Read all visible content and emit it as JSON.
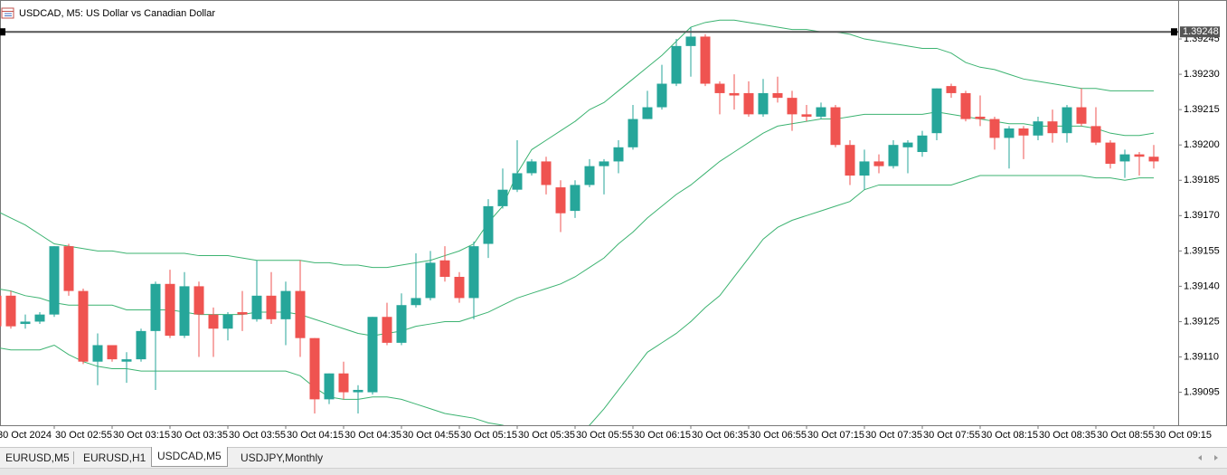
{
  "chart_data": {
    "type": "candlestick",
    "title": "USDCAD, M5:  US Dollar vs Canadian Dollar",
    "categories": [
      "30 Oct 2024",
      null,
      null,
      null,
      "30 Oct 02:55",
      null,
      null,
      null,
      "30 Oct 03:15",
      null,
      null,
      null,
      "30 Oct 03:35",
      null,
      null,
      null,
      "30 Oct 03:55",
      null,
      null,
      null,
      "30 Oct 04:15",
      null,
      null,
      null,
      "30 Oct 04:35",
      null,
      null,
      null,
      "30 Oct 04:55",
      null,
      null,
      null,
      "30 Oct 05:15",
      null,
      null,
      null,
      "30 Oct 05:35",
      null,
      null,
      null,
      "30 Oct 05:55",
      null,
      null,
      null,
      "30 Oct 06:15",
      null,
      null,
      null,
      "30 Oct 06:35",
      null,
      null,
      null,
      "30 Oct 06:55",
      null,
      null,
      null,
      "30 Oct 07:15",
      null,
      null,
      null,
      "30 Oct 07:35",
      null,
      null,
      null,
      "30 Oct 07:55",
      null,
      null,
      null,
      "30 Oct 08:15",
      null,
      null,
      null,
      "30 Oct 08:35",
      null,
      null,
      null,
      "30 Oct 08:55",
      null,
      null,
      null,
      "30 Oct 09:15"
    ],
    "open": [
      1.39136,
      1.39136,
      1.39124,
      1.39125,
      1.39128,
      1.39157,
      1.39138,
      1.39108,
      1.39115,
      1.39108,
      1.39109,
      1.39121,
      1.39141,
      1.39119,
      1.3914,
      1.39128,
      1.39122,
      1.39129,
      1.39126,
      1.39136,
      1.39126,
      1.39138,
      1.39118,
      1.39092,
      1.39103,
      1.39095,
      1.39095,
      1.39127,
      1.39116,
      1.39132,
      1.39135,
      1.39151,
      1.39144,
      1.39135,
      1.39158,
      1.39174,
      1.39181,
      1.39188,
      1.39193,
      1.39182,
      1.39172,
      1.39183,
      1.39191,
      1.39193,
      1.39199,
      1.39211,
      1.39216,
      1.39226,
      1.39242,
      1.39246,
      1.39226,
      1.39222,
      1.39222,
      1.39213,
      1.39222,
      1.3922,
      1.39213,
      1.39212,
      1.39216,
      1.392,
      1.39187,
      1.39193,
      1.39191,
      1.39199,
      1.39197,
      1.39205,
      1.39225,
      1.39222,
      1.39212,
      1.39211,
      1.39203,
      1.39207,
      1.39204,
      1.3921,
      1.39205,
      1.39216,
      1.39208,
      1.39201,
      1.39193,
      1.39196,
      1.39195
    ],
    "high": [
      1.39138,
      1.39138,
      1.39128,
      1.39129,
      1.39157,
      1.39158,
      1.39139,
      1.3912,
      1.39115,
      1.39112,
      1.39122,
      1.39142,
      1.39147,
      1.39146,
      1.39142,
      1.39131,
      1.39129,
      1.39138,
      1.39151,
      1.39146,
      1.39142,
      1.39151,
      1.39118,
      1.39103,
      1.39108,
      1.39098,
      1.39127,
      1.39133,
      1.39137,
      1.39154,
      1.39155,
      1.39157,
      1.39146,
      1.39159,
      1.39177,
      1.3919,
      1.39202,
      1.39194,
      1.39195,
      1.39185,
      1.39185,
      1.39194,
      1.39194,
      1.39202,
      1.39217,
      1.39223,
      1.39234,
      1.39245,
      1.3925,
      1.39247,
      1.39227,
      1.3923,
      1.39227,
      1.39228,
      1.39229,
      1.39223,
      1.39217,
      1.39218,
      1.39217,
      1.39202,
      1.39198,
      1.39196,
      1.39202,
      1.39202,
      1.39206,
      1.39224,
      1.39226,
      1.39223,
      1.39221,
      1.39212,
      1.39208,
      1.39208,
      1.39212,
      1.39215,
      1.39217,
      1.39224,
      1.39216,
      1.39202,
      1.39198,
      1.39197,
      1.392
    ],
    "low": [
      1.39123,
      1.39122,
      1.39122,
      1.39124,
      1.39127,
      1.39136,
      1.39107,
      1.39098,
      1.39108,
      1.39099,
      1.39108,
      1.39096,
      1.39118,
      1.39118,
      1.3911,
      1.3911,
      1.39117,
      1.39121,
      1.39125,
      1.39124,
      1.39115,
      1.3911,
      1.39086,
      1.3909,
      1.39092,
      1.39086,
      1.39094,
      1.39115,
      1.39115,
      1.39131,
      1.39134,
      1.39142,
      1.39133,
      1.39126,
      1.39152,
      1.39173,
      1.3918,
      1.39187,
      1.39179,
      1.39163,
      1.39169,
      1.39182,
      1.39179,
      1.39188,
      1.39198,
      1.39211,
      1.39215,
      1.39225,
      1.39229,
      1.39225,
      1.39213,
      1.39215,
      1.39212,
      1.39212,
      1.39218,
      1.39206,
      1.3921,
      1.39211,
      1.39199,
      1.39183,
      1.39181,
      1.39188,
      1.3919,
      1.39188,
      1.39195,
      1.39202,
      1.3922,
      1.3921,
      1.39208,
      1.39198,
      1.3919,
      1.39194,
      1.39202,
      1.39201,
      1.39201,
      1.39208,
      1.392,
      1.3919,
      1.39186,
      1.39187,
      1.3919
    ],
    "close": [
      1.39123,
      1.39123,
      1.39125,
      1.39128,
      1.39157,
      1.39138,
      1.39108,
      1.39115,
      1.39109,
      1.39109,
      1.39121,
      1.39141,
      1.39119,
      1.3914,
      1.39128,
      1.39122,
      1.39128,
      1.39128,
      1.39136,
      1.39126,
      1.39138,
      1.39118,
      1.39092,
      1.39103,
      1.39095,
      1.39096,
      1.39127,
      1.39116,
      1.39132,
      1.39135,
      1.3915,
      1.39144,
      1.39135,
      1.39157,
      1.39174,
      1.39181,
      1.39188,
      1.39193,
      1.39183,
      1.39171,
      1.39183,
      1.39191,
      1.39193,
      1.39199,
      1.39211,
      1.39216,
      1.39226,
      1.39242,
      1.39246,
      1.39226,
      1.39222,
      1.39221,
      1.39213,
      1.39222,
      1.3922,
      1.39213,
      1.39212,
      1.39216,
      1.392,
      1.39187,
      1.39193,
      1.39191,
      1.392,
      1.39201,
      1.39204,
      1.39224,
      1.39222,
      1.39211,
      1.39211,
      1.39203,
      1.39207,
      1.39204,
      1.3921,
      1.39205,
      1.39216,
      1.39209,
      1.39201,
      1.39192,
      1.39196,
      1.39195,
      1.39193
    ],
    "up_color": "#26a69a",
    "down_color": "#ef5350",
    "bands": {
      "color": "#3cb371",
      "upper": [
        1.39172,
        1.39169,
        1.39166,
        1.39162,
        1.39158,
        1.39157,
        1.39156,
        1.39155,
        1.39155,
        1.39154,
        1.39154,
        1.39154,
        1.39154,
        1.39154,
        1.39153,
        1.39153,
        1.39153,
        1.39152,
        1.39151,
        1.39151,
        1.39151,
        1.39151,
        1.3915,
        1.3915,
        1.39149,
        1.39149,
        1.39148,
        1.39148,
        1.39149,
        1.3915,
        1.39151,
        1.39153,
        1.39155,
        1.39158,
        1.39167,
        1.39174,
        1.39188,
        1.39198,
        1.39202,
        1.39206,
        1.3921,
        1.39215,
        1.39218,
        1.39223,
        1.39228,
        1.39233,
        1.39238,
        1.39244,
        1.3925,
        1.39252,
        1.39253,
        1.39253,
        1.39252,
        1.39251,
        1.3925,
        1.39249,
        1.39249,
        1.39248,
        1.39248,
        1.39247,
        1.39245,
        1.39244,
        1.39243,
        1.39242,
        1.39241,
        1.39241,
        1.39239,
        1.39235,
        1.39233,
        1.39232,
        1.3923,
        1.39228,
        1.39227,
        1.39226,
        1.39225,
        1.39224,
        1.39224,
        1.39223,
        1.39223,
        1.39223,
        1.39223
      ],
      "middle": [
        1.39139,
        1.39138,
        1.39136,
        1.39135,
        1.39133,
        1.39132,
        1.39132,
        1.39132,
        1.39132,
        1.3913,
        1.3913,
        1.3913,
        1.3913,
        1.39129,
        1.39128,
        1.39128,
        1.39128,
        1.39128,
        1.39129,
        1.39129,
        1.39129,
        1.39128,
        1.39126,
        1.39124,
        1.39122,
        1.3912,
        1.39119,
        1.3912,
        1.39121,
        1.39123,
        1.39124,
        1.39125,
        1.39125,
        1.39127,
        1.39129,
        1.39132,
        1.39135,
        1.39137,
        1.39139,
        1.39141,
        1.39144,
        1.39148,
        1.39152,
        1.39158,
        1.39163,
        1.39169,
        1.39174,
        1.39179,
        1.39183,
        1.39188,
        1.39193,
        1.39197,
        1.39201,
        1.39205,
        1.39208,
        1.39209,
        1.3921,
        1.39211,
        1.39211,
        1.39212,
        1.39213,
        1.39213,
        1.39213,
        1.39213,
        1.39213,
        1.39214,
        1.39213,
        1.39212,
        1.39211,
        1.3921,
        1.39209,
        1.39209,
        1.39208,
        1.39208,
        1.39208,
        1.39208,
        1.39207,
        1.39205,
        1.39204,
        1.39204,
        1.39205
      ],
      "lower": [
        1.39114,
        1.39113,
        1.39113,
        1.39113,
        1.39115,
        1.39111,
        1.39108,
        1.39106,
        1.39105,
        1.39105,
        1.39104,
        1.39104,
        1.39104,
        1.39104,
        1.39104,
        1.39104,
        1.39104,
        1.39104,
        1.39104,
        1.39104,
        1.39104,
        1.39102,
        1.39097,
        1.39093,
        1.39092,
        1.39092,
        1.39093,
        1.39093,
        1.39092,
        1.3909,
        1.39088,
        1.39086,
        1.39085,
        1.39084,
        1.39082,
        1.39081,
        1.39079,
        1.39077,
        1.39076,
        1.39077,
        1.39078,
        1.39081,
        1.39088,
        1.39096,
        1.39104,
        1.39112,
        1.39116,
        1.3912,
        1.39125,
        1.39131,
        1.39136,
        1.39144,
        1.39152,
        1.3916,
        1.39165,
        1.39168,
        1.3917,
        1.39172,
        1.39174,
        1.39176,
        1.39181,
        1.39183,
        1.39183,
        1.39183,
        1.39183,
        1.39183,
        1.39183,
        1.39185,
        1.39187,
        1.39187,
        1.39187,
        1.39187,
        1.39187,
        1.39187,
        1.39187,
        1.39187,
        1.39186,
        1.39186,
        1.39185,
        1.39186,
        1.39186
      ]
    },
    "hline": 1.39248,
    "ylim": [
      1.39081,
      1.3926
    ],
    "yticks": [
      1.39245,
      {
        "value": 1.3923,
        "label": "1.39230"
      },
      1.39215,
      {
        "value": 1.392,
        "label": "1.39200"
      },
      1.39185,
      {
        "value": 1.3917,
        "label": "1.39170"
      },
      1.39155,
      {
        "value": 1.3914,
        "label": "1.39140"
      },
      1.39125,
      {
        "value": 1.3911,
        "label": "1.39110"
      },
      1.39095
    ]
  },
  "tabs": [
    "EURUSD,M5",
    "EURUSD,H1",
    "USDCAD,M5",
    "USDJPY,Monthly"
  ]
}
